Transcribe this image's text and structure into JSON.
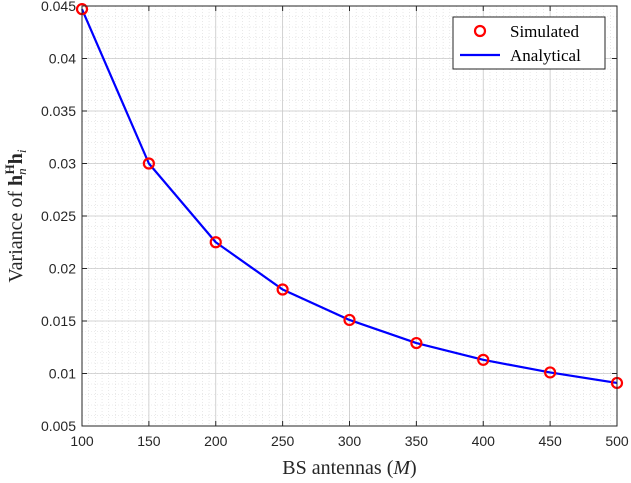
{
  "chart_data": {
    "type": "line",
    "xlabel": "BS antennas",
    "xlabel_math": "M",
    "ylabel": "Variance of",
    "ylabel_math": "h",
    "ylabel_math_sub": "n",
    "ylabel_math_sup": "H",
    "ylabel_math2": "h",
    "ylabel_math2_sub": "i",
    "xlim": [
      100,
      500
    ],
    "ylim": [
      0.005,
      0.045
    ],
    "xticks": [
      100,
      150,
      200,
      250,
      300,
      350,
      400,
      450,
      500
    ],
    "xtick_labels": [
      "100",
      "150",
      "200",
      "250",
      "300",
      "350",
      "400",
      "450",
      "500"
    ],
    "yticks": [
      0.005,
      0.01,
      0.015,
      0.02,
      0.025,
      0.03,
      0.035,
      0.04,
      0.045
    ],
    "ytick_labels": [
      "0.005",
      "0.01",
      "0.015",
      "0.02",
      "0.025",
      "0.03",
      "0.035",
      "0.04",
      "0.045"
    ],
    "grid": true,
    "minor_grid": true,
    "legend_position": "top-right",
    "x": [
      100,
      150,
      200,
      250,
      300,
      350,
      400,
      450,
      500
    ],
    "series": [
      {
        "name": "Simulated",
        "style": "markers",
        "marker": "circle",
        "color": "#ff0000",
        "values": [
          0.0447,
          0.03,
          0.0225,
          0.018,
          0.0151,
          0.0129,
          0.0113,
          0.0101,
          0.0091
        ]
      },
      {
        "name": "Analytical",
        "style": "line",
        "color": "#0000ff",
        "values": [
          0.0447,
          0.03,
          0.0225,
          0.018,
          0.0151,
          0.0129,
          0.0113,
          0.0101,
          0.0091
        ]
      }
    ]
  }
}
